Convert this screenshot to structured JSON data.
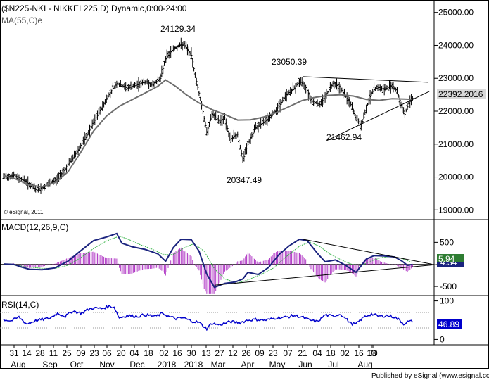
{
  "chart_data": [
    {
      "type": "candlestick",
      "title": "($N225-NKI - NIKKEI 225,D) Dynamic,0:00-24:00",
      "overlay_label": "MA(55,C)e",
      "watermark": "© eSignal, 2011",
      "ylim": [
        18750,
        25250
      ],
      "y_ticks": [
        19000,
        20000,
        21000,
        22000,
        23000,
        24000,
        25000
      ],
      "y_tick_labels": [
        "19000.00",
        "20000.00",
        "21000.00",
        "22000.00",
        "23000.00",
        "24000.00",
        "25000.00"
      ],
      "last_value": "22392.2016",
      "annotations": [
        {
          "text": "24129.34",
          "value": 24129.34
        },
        {
          "text": "23050.39",
          "value": 23050.39
        },
        {
          "text": "21462.94",
          "value": 21462.94
        },
        {
          "text": "20347.49",
          "value": 20347.49
        }
      ],
      "price_path": [
        [
          0,
          20000
        ],
        [
          8,
          20050
        ],
        [
          16,
          19900
        ],
        [
          26,
          19600
        ],
        [
          34,
          19750
        ],
        [
          42,
          19950
        ],
        [
          48,
          20250
        ],
        [
          56,
          20700
        ],
        [
          64,
          21200
        ],
        [
          72,
          21800
        ],
        [
          82,
          22500
        ],
        [
          88,
          22850
        ],
        [
          96,
          22700
        ],
        [
          104,
          22800
        ],
        [
          110,
          22900
        ],
        [
          116,
          22800
        ],
        [
          122,
          23000
        ],
        [
          126,
          23600
        ],
        [
          132,
          23900
        ],
        [
          140,
          24050
        ],
        [
          146,
          23700
        ],
        [
          150,
          22900
        ],
        [
          154,
          22200
        ],
        [
          158,
          21350
        ],
        [
          162,
          21900
        ],
        [
          168,
          21700
        ],
        [
          172,
          21800
        ],
        [
          176,
          21150
        ],
        [
          182,
          21300
        ],
        [
          186,
          20500
        ],
        [
          190,
          21000
        ],
        [
          196,
          21500
        ],
        [
          202,
          21650
        ],
        [
          208,
          21850
        ],
        [
          214,
          22150
        ],
        [
          220,
          22500
        ],
        [
          226,
          22700
        ],
        [
          230,
          22900
        ],
        [
          234,
          22800
        ],
        [
          240,
          22300
        ],
        [
          246,
          22200
        ],
        [
          250,
          22450
        ],
        [
          256,
          22850
        ],
        [
          260,
          22800
        ],
        [
          266,
          22450
        ],
        [
          270,
          22200
        ],
        [
          274,
          21800
        ],
        [
          278,
          21550
        ],
        [
          282,
          22100
        ],
        [
          286,
          22550
        ],
        [
          290,
          22750
        ],
        [
          296,
          22650
        ],
        [
          302,
          22800
        ],
        [
          306,
          22600
        ],
        [
          309,
          22200
        ],
        [
          312,
          21900
        ],
        [
          315,
          22250
        ],
        [
          318,
          22390
        ]
      ],
      "ma_path": [
        [
          0,
          20050
        ],
        [
          10,
          19930
        ],
        [
          20,
          19760
        ],
        [
          30,
          19700
        ],
        [
          40,
          19830
        ],
        [
          50,
          20150
        ],
        [
          60,
          20750
        ],
        [
          70,
          21400
        ],
        [
          80,
          21850
        ],
        [
          90,
          22150
        ],
        [
          100,
          22350
        ],
        [
          110,
          22550
        ],
        [
          120,
          22760
        ],
        [
          126,
          22950
        ],
        [
          134,
          22750
        ],
        [
          142,
          22500
        ],
        [
          152,
          22250
        ],
        [
          162,
          22050
        ],
        [
          172,
          21900
        ],
        [
          182,
          21730
        ],
        [
          192,
          21740
        ],
        [
          202,
          21820
        ],
        [
          212,
          21960
        ],
        [
          222,
          22140
        ],
        [
          232,
          22320
        ],
        [
          242,
          22420
        ],
        [
          252,
          22480
        ],
        [
          262,
          22500
        ],
        [
          272,
          22460
        ],
        [
          282,
          22360
        ],
        [
          292,
          22330
        ],
        [
          302,
          22380
        ],
        [
          312,
          22370
        ],
        [
          318,
          22360
        ]
      ],
      "trendlines": [
        {
          "from": [
            233,
            23050
          ],
          "to": [
            330,
            22880
          ]
        },
        {
          "from": [
            251,
            21100
          ],
          "to": [
            331,
            22600
          ]
        }
      ]
    },
    {
      "type": "line",
      "title": "MACD(12,26,9,C)",
      "ylim": [
        -690,
        1000
      ],
      "y_ticks": [
        -500,
        500
      ],
      "y_tick_labels": [
        "-500",
        "500"
      ],
      "macd_value": "5.94",
      "signal_value_partial": "4.34",
      "macd_path": [
        [
          0,
          10
        ],
        [
          8,
          0
        ],
        [
          14,
          -60
        ],
        [
          20,
          -110
        ],
        [
          30,
          -120
        ],
        [
          40,
          -80
        ],
        [
          50,
          70
        ],
        [
          60,
          310
        ],
        [
          70,
          540
        ],
        [
          80,
          620
        ],
        [
          88,
          700
        ],
        [
          92,
          480
        ],
        [
          100,
          400
        ],
        [
          110,
          340
        ],
        [
          120,
          240
        ],
        [
          126,
          70
        ],
        [
          132,
          380
        ],
        [
          138,
          570
        ],
        [
          146,
          560
        ],
        [
          152,
          300
        ],
        [
          158,
          -220
        ],
        [
          164,
          -520
        ],
        [
          172,
          -430
        ],
        [
          180,
          -400
        ],
        [
          186,
          -330
        ],
        [
          190,
          -180
        ],
        [
          198,
          -230
        ],
        [
          206,
          -70
        ],
        [
          214,
          220
        ],
        [
          222,
          420
        ],
        [
          230,
          570
        ],
        [
          236,
          540
        ],
        [
          244,
          250
        ],
        [
          250,
          60
        ],
        [
          258,
          100
        ],
        [
          266,
          -20
        ],
        [
          274,
          -180
        ],
        [
          282,
          120
        ],
        [
          288,
          200
        ],
        [
          296,
          190
        ],
        [
          304,
          170
        ],
        [
          310,
          70
        ],
        [
          314,
          -20
        ],
        [
          318,
          0
        ]
      ],
      "signal_path": [
        [
          0,
          10
        ],
        [
          10,
          -20
        ],
        [
          20,
          -60
        ],
        [
          30,
          -90
        ],
        [
          40,
          -90
        ],
        [
          50,
          -20
        ],
        [
          60,
          150
        ],
        [
          70,
          360
        ],
        [
          80,
          530
        ],
        [
          90,
          640
        ],
        [
          96,
          580
        ],
        [
          106,
          450
        ],
        [
          116,
          340
        ],
        [
          124,
          230
        ],
        [
          132,
          220
        ],
        [
          140,
          370
        ],
        [
          148,
          470
        ],
        [
          156,
          300
        ],
        [
          164,
          -100
        ],
        [
          172,
          -330
        ],
        [
          182,
          -420
        ],
        [
          190,
          -350
        ],
        [
          200,
          -230
        ],
        [
          210,
          -80
        ],
        [
          220,
          180
        ],
        [
          230,
          410
        ],
        [
          238,
          510
        ],
        [
          246,
          400
        ],
        [
          254,
          230
        ],
        [
          262,
          110
        ],
        [
          270,
          10
        ],
        [
          278,
          -30
        ],
        [
          286,
          80
        ],
        [
          294,
          160
        ],
        [
          302,
          180
        ],
        [
          310,
          130
        ],
        [
          318,
          40
        ]
      ],
      "trendlines": [
        {
          "from": [
            233,
            570
          ],
          "to": [
            333,
            5
          ]
        },
        {
          "from": [
            164,
            -470
          ],
          "to": [
            338,
            0
          ]
        }
      ]
    },
    {
      "type": "line",
      "title": "RSI(14,C)",
      "ylim": [
        -12,
        112
      ],
      "y_ticks": [
        0,
        100
      ],
      "y_tick_labels": [
        "0",
        "100"
      ],
      "guide_levels": [
        70,
        30
      ],
      "last_value": "46.89",
      "rsi_path": [
        [
          0,
          52
        ],
        [
          6,
          48
        ],
        [
          12,
          58
        ],
        [
          18,
          40
        ],
        [
          24,
          48
        ],
        [
          30,
          52
        ],
        [
          36,
          55
        ],
        [
          42,
          68
        ],
        [
          48,
          60
        ],
        [
          54,
          74
        ],
        [
          60,
          68
        ],
        [
          66,
          78
        ],
        [
          70,
          82
        ],
        [
          76,
          80
        ],
        [
          82,
          86
        ],
        [
          86,
          84
        ],
        [
          90,
          56
        ],
        [
          96,
          62
        ],
        [
          104,
          60
        ],
        [
          110,
          64
        ],
        [
          118,
          60
        ],
        [
          124,
          68
        ],
        [
          128,
          60
        ],
        [
          134,
          54
        ],
        [
          140,
          56
        ],
        [
          146,
          48
        ],
        [
          152,
          44
        ],
        [
          158,
          28
        ],
        [
          162,
          42
        ],
        [
          168,
          38
        ],
        [
          176,
          46
        ],
        [
          184,
          44
        ],
        [
          190,
          50
        ],
        [
          196,
          52
        ],
        [
          204,
          50
        ],
        [
          212,
          56
        ],
        [
          220,
          58
        ],
        [
          226,
          62
        ],
        [
          232,
          58
        ],
        [
          238,
          50
        ],
        [
          244,
          46
        ],
        [
          250,
          64
        ],
        [
          256,
          60
        ],
        [
          262,
          66
        ],
        [
          266,
          54
        ],
        [
          270,
          42
        ],
        [
          274,
          40
        ],
        [
          280,
          58
        ],
        [
          286,
          66
        ],
        [
          292,
          60
        ],
        [
          298,
          62
        ],
        [
          304,
          58
        ],
        [
          308,
          50
        ],
        [
          311,
          40
        ],
        [
          314,
          46
        ],
        [
          318,
          47
        ]
      ]
    }
  ],
  "x_axis": {
    "day_labels": [
      "31",
      "14",
      "28",
      "11",
      "25",
      "09",
      "23",
      "06",
      "20",
      "04",
      "18",
      "02",
      "16",
      "30",
      "13",
      "27",
      "12",
      "26",
      "09",
      "23",
      "07",
      "21",
      "04",
      "18",
      "02",
      "16",
      "30",
      "13"
    ],
    "month_labels": [
      "Aug",
      "Sep",
      "Oct",
      "Nov",
      "Dec",
      "2018",
      "2018",
      "Mar",
      "Apr",
      "May",
      "Jun",
      "Jul",
      "Aug"
    ]
  },
  "footer": "Published by eSignal (www.esignal.com)",
  "colors": {
    "price": "#000000",
    "ma": "#6e6e6e",
    "macd": "#1a237e",
    "signal": "#39b54a",
    "histogram": "#b23cc6",
    "rsi": "#0000cc",
    "macd_tag_bg": "#2e7d32",
    "rsi_tag_bg": "#0000cc",
    "price_tag_bg": "#d9d9d9"
  }
}
